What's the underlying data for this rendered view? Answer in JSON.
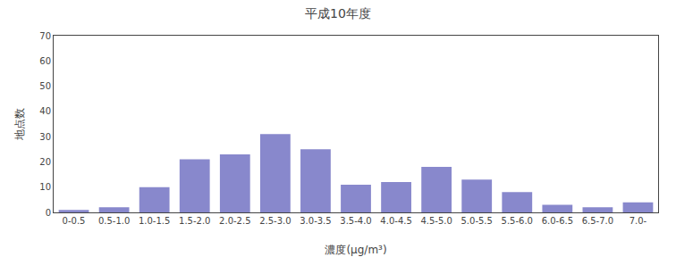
{
  "chart_data": {
    "type": "bar",
    "title": "平成10年度",
    "xlabel": "濃度(μg/m³)",
    "ylabel": "地点数",
    "categories": [
      "0-0.5",
      "0.5-1.0",
      "1.0-1.5",
      "1.5-2.0",
      "2.0-2.5",
      "2.5-3.0",
      "3.0-3.5",
      "3.5-4.0",
      "4.0-4.5",
      "4.5-5.0",
      "5.0-5.5",
      "5.5-6.0",
      "6.0-6.5",
      "6.5-7.0",
      "7.0-"
    ],
    "values": [
      1,
      2,
      10,
      21,
      23,
      31,
      25,
      11,
      12,
      18,
      13,
      8,
      3,
      2,
      4
    ],
    "color": "#8888cc",
    "ylim": [
      0,
      70
    ],
    "yticks": [
      0,
      10,
      20,
      30,
      40,
      50,
      60,
      70
    ],
    "grid": false
  }
}
